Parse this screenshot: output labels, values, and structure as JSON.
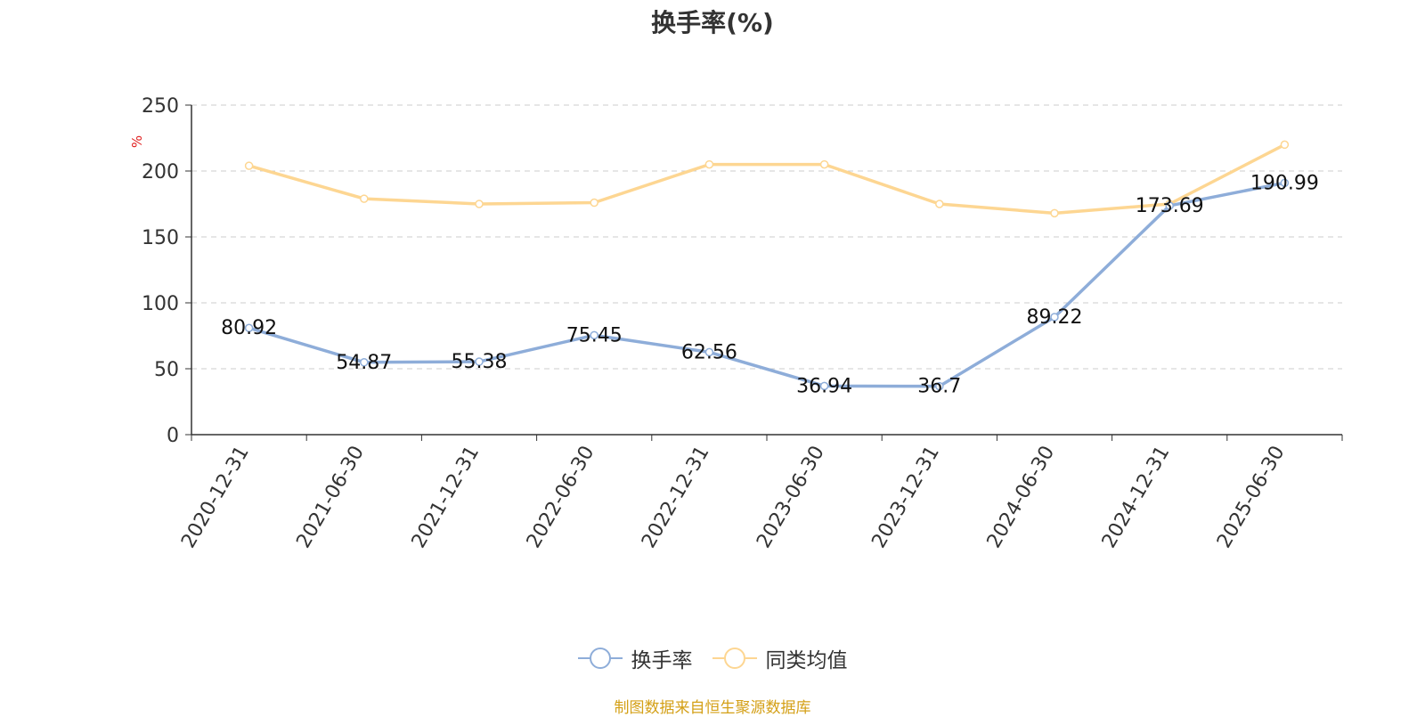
{
  "chart_data": {
    "type": "line",
    "title": "换手率(%)",
    "ylabel": "%",
    "categories": [
      "2020-12-31",
      "2021-06-30",
      "2021-12-31",
      "2022-06-30",
      "2022-12-31",
      "2023-06-30",
      "2023-12-31",
      "2024-06-30",
      "2024-12-31",
      "2025-06-30"
    ],
    "yticks": [
      "0",
      "50",
      "100",
      "150",
      "200",
      "250"
    ],
    "ylim": [
      0,
      250
    ],
    "grid": true,
    "legend_position": "bottom",
    "series": [
      {
        "name": "换手率",
        "color": "#8eadd9",
        "labels_shown": true,
        "values": [
          80.92,
          54.87,
          55.38,
          75.45,
          62.56,
          36.94,
          36.7,
          89.22,
          173.69,
          190.99
        ],
        "labels": [
          "80.92",
          "54.87",
          "55.38",
          "75.45",
          "62.56",
          "36.94",
          "36.7",
          "89.22",
          "173.69",
          "190.99"
        ]
      },
      {
        "name": "同类均值",
        "color": "#fdd692",
        "labels_shown": false,
        "values": [
          204,
          179,
          175,
          176,
          205,
          205,
          175,
          168,
          175,
          220
        ]
      }
    ]
  },
  "source": "制图数据来自恒生聚源数据库",
  "colors": {
    "axis": "#333333",
    "grid": "#cccccc",
    "ylabel": "#e02020",
    "source": "#d4a017"
  }
}
